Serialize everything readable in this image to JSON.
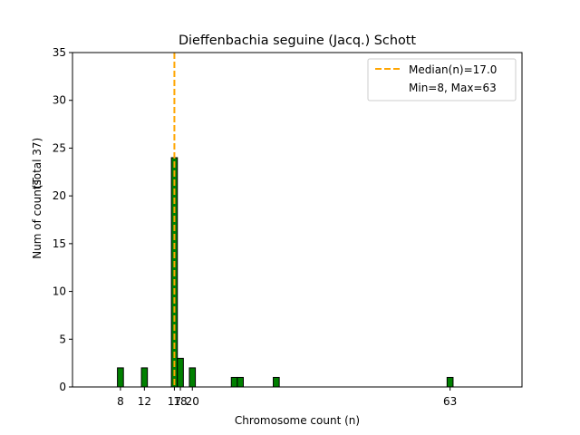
{
  "chart_data": {
    "type": "bar",
    "title": "Dieffenbachia seguine (Jacq.) Schott",
    "xlabel": "Chromosome count (n)",
    "ylabel": "Num of counts",
    "ylabel_total": "(Total 37)",
    "xlim": [
      0,
      75
    ],
    "ylim": [
      0,
      35
    ],
    "yticks": [
      0,
      5,
      10,
      15,
      20,
      25,
      30,
      35
    ],
    "xticks": [
      8,
      12,
      17,
      18,
      20,
      63
    ],
    "bar_width": 1,
    "bars": [
      {
        "x": 8,
        "count": 2
      },
      {
        "x": 12,
        "count": 2
      },
      {
        "x": 17,
        "count": 24
      },
      {
        "x": 18,
        "count": 3
      },
      {
        "x": 20,
        "count": 2
      },
      {
        "x": 27,
        "count": 1
      },
      {
        "x": 28,
        "count": 1
      },
      {
        "x": 34,
        "count": 1
      },
      {
        "x": 63,
        "count": 1
      }
    ],
    "median": 17.0,
    "legend": {
      "position": "upper right",
      "median_label": "Median(n)=17.0",
      "range_label": "Min=8, Max=63"
    },
    "colors": {
      "bar_fill": "#008000",
      "bar_edge": "#000000",
      "median_line": "#ffa500"
    }
  }
}
